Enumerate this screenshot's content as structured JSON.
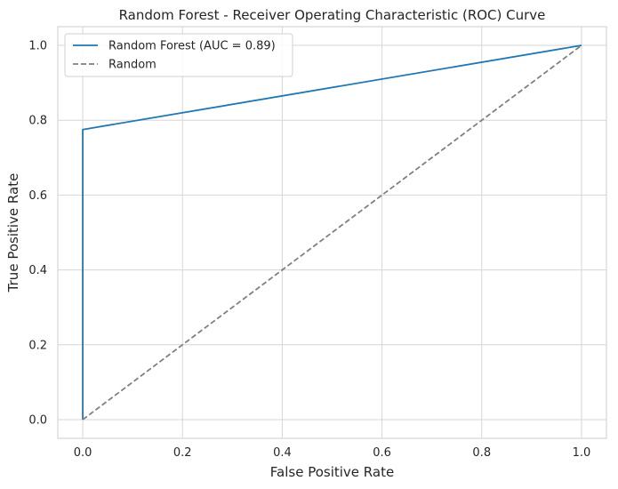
{
  "chart_data": {
    "type": "line",
    "title": "Random Forest - Receiver Operating Characteristic (ROC) Curve",
    "xlabel": "False Positive Rate",
    "ylabel": "True Positive Rate",
    "xlim": [
      -0.05,
      1.05
    ],
    "ylim": [
      -0.05,
      1.05
    ],
    "xticks": [
      0.0,
      0.2,
      0.4,
      0.6,
      0.8,
      1.0
    ],
    "yticks": [
      0.0,
      0.2,
      0.4,
      0.6,
      0.8,
      1.0
    ],
    "xtick_labels": [
      "0.0",
      "0.2",
      "0.4",
      "0.6",
      "0.8",
      "1.0"
    ],
    "ytick_labels": [
      "0.0",
      "0.2",
      "0.4",
      "0.6",
      "0.8",
      "1.0"
    ],
    "grid": true,
    "legend_position": "top-left",
    "series": [
      {
        "name": "Random Forest (AUC = 0.89)",
        "color": "#1f77b4",
        "style": "solid",
        "x": [
          0.0,
          0.0,
          1.0
        ],
        "y": [
          0.0,
          0.775,
          1.0
        ]
      },
      {
        "name": "Random",
        "color": "#808080",
        "style": "dashed",
        "x": [
          0.0,
          1.0
        ],
        "y": [
          0.0,
          1.0
        ]
      }
    ]
  }
}
